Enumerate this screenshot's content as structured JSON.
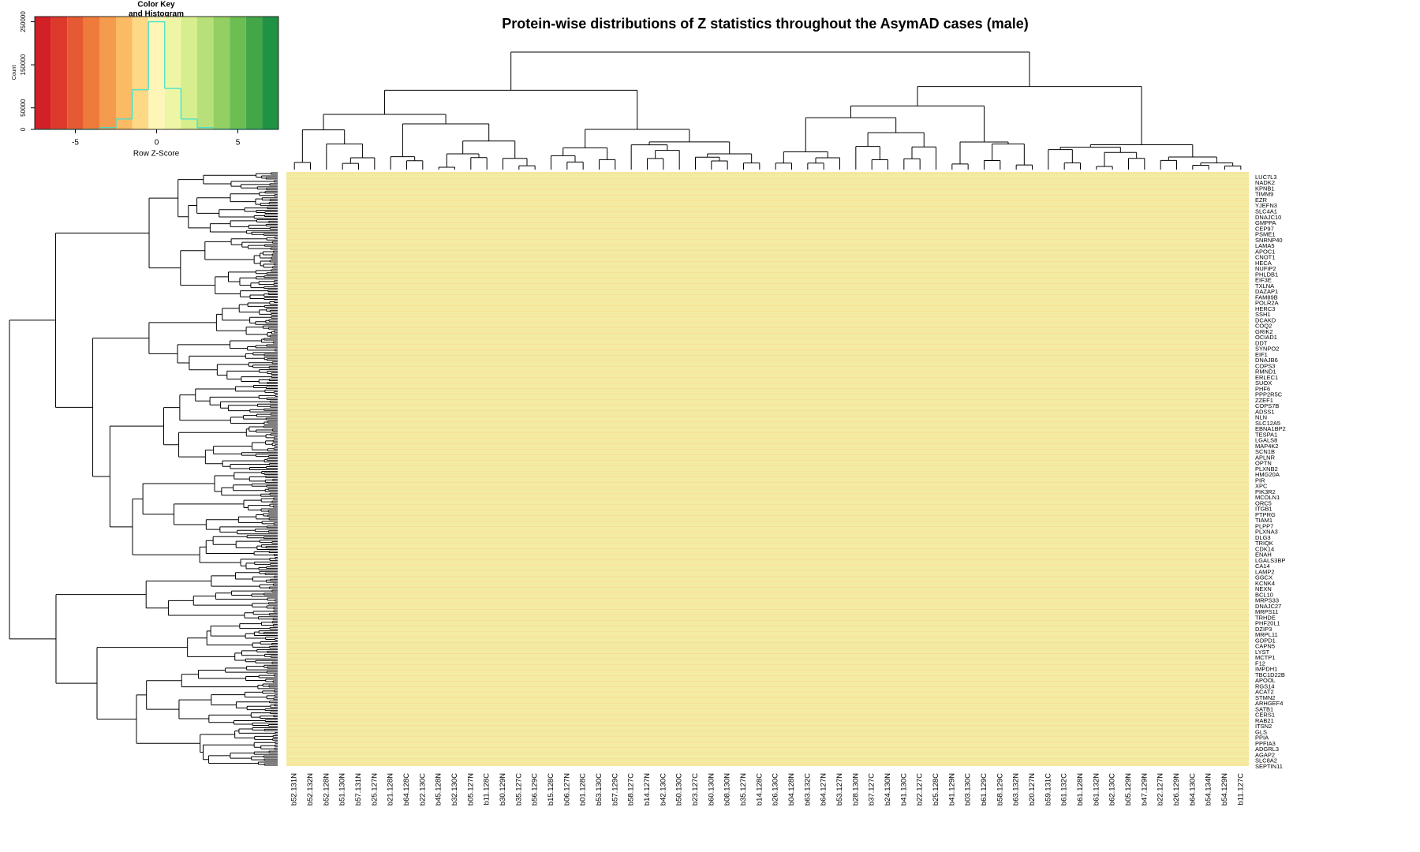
{
  "chart_data": [
    {
      "type": "histogram",
      "title": "Color Key",
      "subtitle": "and Histogram",
      "x_label": "Row Z-Score",
      "y_label": "Count",
      "bins": [
        -7.5,
        -6.5,
        -5.5,
        -4.5,
        -3.5,
        -2.5,
        -1.5,
        -0.5,
        0.5,
        1.5,
        2.5,
        3.5,
        4.5,
        5.5,
        6.5,
        7.5
      ],
      "counts": [
        0,
        0,
        0,
        100,
        4000,
        24000,
        92000,
        250000,
        95000,
        24000,
        4000,
        500,
        100,
        0,
        0
      ],
      "line_color": "#40e0d0",
      "colors": [
        "#d31f26",
        "#dd3a2c",
        "#e55a33",
        "#ee7a3c",
        "#f59b4f",
        "#fbba64",
        "#fdd885",
        "#fef6b6",
        "#eef6a6",
        "#d6ee8e",
        "#b8e07a",
        "#94cf64",
        "#6cbd52",
        "#43a748",
        "#1f9343"
      ],
      "xlim": [
        -7.5,
        7.5
      ],
      "ylim": [
        0,
        262000
      ],
      "xticks": [
        -5,
        0,
        5
      ],
      "yticks": [
        0,
        50000,
        150000,
        250000
      ]
    },
    {
      "type": "heatmap",
      "title": "Protein-wise distributions of Z statistics throughout the AsymAD cases (male)",
      "columns": [
        "b52.131N",
        "b52.132N",
        "b52.128N",
        "b51.130N",
        "b57.131N",
        "b25.127N",
        "b21.128N",
        "b64.128C",
        "b22.130C",
        "b45.128N",
        "b32.130C",
        "b05.127N",
        "b11.128C",
        "b30.129N",
        "b35.127C",
        "b56.129C",
        "b15.128C",
        "b06.127N",
        "b01.128C",
        "b53.130C",
        "b57.129C",
        "b58.127C",
        "b14.127N",
        "b42.130C",
        "b50.130C",
        "b23.127C",
        "b60.130N",
        "b08.130N",
        "b35.127N",
        "b14.128C",
        "b26.130C",
        "b04.128N",
        "b63.132C",
        "b64.127N",
        "b53.127N",
        "b28.130N",
        "b37.127C",
        "b24.130N",
        "b41.130C",
        "b22.127C",
        "b25.128C",
        "b41.129N",
        "b03.130C",
        "b61.129C",
        "b58.129C",
        "b63.132N",
        "b20.127N",
        "b59.131C",
        "b61.132C",
        "b61.128N",
        "b61.132N",
        "b62.130C",
        "b05.129N",
        "b47.129N",
        "b22.127N",
        "b26.129N",
        "b64.130C",
        "b54.134N",
        "b54.129N",
        "b11.127C"
      ],
      "rows": [
        "LUC7L3",
        "NADK2",
        "KPNB1",
        "TIMM9",
        "EZR",
        "YJEFN3",
        "SLC4A1",
        "DNAJC10",
        "GMPPA",
        "CEP97",
        "PSME1",
        "SNRNP40",
        "LAMA5",
        "APOC1",
        "CNOT1",
        "HECA",
        "NUFIP2",
        "PHLDB1",
        "EIF3E",
        "TXLNA",
        "DAZAP1",
        "FAM89B",
        "POLR2A",
        "HERC3",
        "SSH1",
        "DCAKD",
        "COQ2",
        "GRIK2",
        "OCIAD1",
        "DDT",
        "SYNPO2",
        "EIF1",
        "DNAJB6",
        "COPS3",
        "RMND1",
        "ERLEC1",
        "SUOX",
        "PHF6",
        "PPP2R5C",
        "ZZEF1",
        "COPS7B",
        "ADSS1",
        "NLN",
        "SLC12A5",
        "EBNA1BP2",
        "TESPA1",
        "LGALS8",
        "MAP4K2",
        "SCN1B",
        "APLNR",
        "OPTN",
        "PLXNB2",
        "HMG20A",
        "PIR",
        "XPC",
        "PIK3R2",
        "MCOLN1",
        "ORC5",
        "ITGB1",
        "PTPRG",
        "TIAM1",
        "PLPP7",
        "PLXNA3",
        "DLG3",
        "TRIQK",
        "CDK14",
        "ENAH",
        "LGALS3BP",
        "CA14",
        "LAMP2",
        "GGCX",
        "KCNK4",
        "NEXN",
        "BCL10",
        "MRPS33",
        "DNAJC27",
        "MRPS11",
        "TRHDE",
        "PHF20L1",
        "DZIP3",
        "MRPL11",
        "GDPD1",
        "CAPN5",
        "LYST",
        "MCTP1",
        "F12",
        "IMPDH1",
        "TBC1D22B",
        "APOOL",
        "RGS14",
        "ACAT2",
        "STMN2",
        "ARHGEF4",
        "SATB1",
        "CERS1",
        "RAB21",
        "ITSN2",
        "GLS",
        "PPIA",
        "PPFIA3",
        "ADGRL3",
        "AGAP2",
        "SLC8A2",
        "SEPTIN11"
      ]
    }
  ]
}
